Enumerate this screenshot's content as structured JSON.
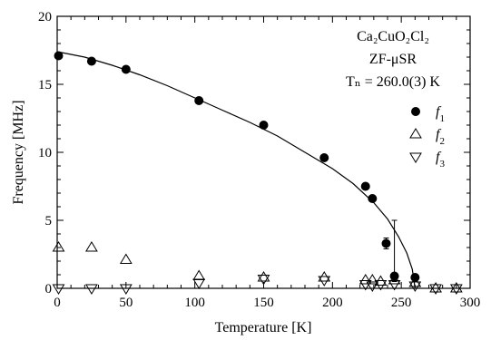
{
  "chart_data": {
    "type": "scatter",
    "xlabel": "Temperature [K]",
    "ylabel": "Frequency [MHz]",
    "xlim": [
      0,
      300
    ],
    "ylim": [
      0,
      20
    ],
    "x_ticks": [
      0,
      50,
      100,
      150,
      200,
      250,
      300
    ],
    "y_ticks": [
      0,
      5,
      10,
      15,
      20
    ],
    "grid": false,
    "legend_position": "right",
    "annotation": {
      "compound": "Ca₂CuO₂Cl₂",
      "method": "ZF-μSR",
      "tn": "Tₙ = 260.0(3) K"
    },
    "series": [
      {
        "name": "f1",
        "marker": "filled-circle",
        "points": [
          {
            "x": 1,
            "y": 17.1
          },
          {
            "x": 25,
            "y": 16.7
          },
          {
            "x": 50,
            "y": 16.1
          },
          {
            "x": 103,
            "y": 13.8
          },
          {
            "x": 150,
            "y": 12.0
          },
          {
            "x": 194,
            "y": 9.6
          },
          {
            "x": 224,
            "y": 7.5
          },
          {
            "x": 229,
            "y": 6.6
          },
          {
            "x": 239,
            "y": 3.3,
            "err": 0.4
          },
          {
            "x": 245,
            "y": 0.9,
            "err_up": 4.1,
            "err_down": 0.4
          },
          {
            "x": 260,
            "y": 0.8
          }
        ]
      },
      {
        "name": "f2",
        "marker": "open-triangle-up",
        "points": [
          {
            "x": 1,
            "y": 3.0
          },
          {
            "x": 25,
            "y": 3.0
          },
          {
            "x": 50,
            "y": 2.1
          },
          {
            "x": 103,
            "y": 0.9
          },
          {
            "x": 150,
            "y": 0.8
          },
          {
            "x": 194,
            "y": 0.8
          },
          {
            "x": 224,
            "y": 0.6
          },
          {
            "x": 229,
            "y": 0.6
          },
          {
            "x": 235,
            "y": 0.5
          },
          {
            "x": 245,
            "y": 0.6
          },
          {
            "x": 260,
            "y": 0.4
          },
          {
            "x": 275,
            "y": 0.0
          },
          {
            "x": 290,
            "y": 0.0
          }
        ]
      },
      {
        "name": "f3",
        "marker": "open-triangle-down",
        "points": [
          {
            "x": 1,
            "y": 0.0
          },
          {
            "x": 25,
            "y": 0.0
          },
          {
            "x": 50,
            "y": 0.0
          },
          {
            "x": 103,
            "y": 0.4
          },
          {
            "x": 150,
            "y": 0.7
          },
          {
            "x": 194,
            "y": 0.6
          },
          {
            "x": 224,
            "y": 0.3
          },
          {
            "x": 229,
            "y": 0.2
          },
          {
            "x": 235,
            "y": 0.3
          },
          {
            "x": 245,
            "y": 0.3
          },
          {
            "x": 260,
            "y": 0.2
          },
          {
            "x": 275,
            "y": 0.0
          },
          {
            "x": 290,
            "y": 0.0
          }
        ]
      }
    ],
    "fit_curve": {
      "f0": 17.4,
      "tn": 260,
      "points": [
        {
          "x": 0,
          "y": 17.4
        },
        {
          "x": 20,
          "y": 17.0
        },
        {
          "x": 40,
          "y": 16.4
        },
        {
          "x": 60,
          "y": 15.7
        },
        {
          "x": 80,
          "y": 14.9
        },
        {
          "x": 100,
          "y": 14.0
        },
        {
          "x": 120,
          "y": 13.1
        },
        {
          "x": 140,
          "y": 12.2
        },
        {
          "x": 160,
          "y": 11.2
        },
        {
          "x": 180,
          "y": 10.0
        },
        {
          "x": 200,
          "y": 8.8
        },
        {
          "x": 215,
          "y": 7.7
        },
        {
          "x": 230,
          "y": 6.3
        },
        {
          "x": 240,
          "y": 5.1
        },
        {
          "x": 248,
          "y": 3.8
        },
        {
          "x": 254,
          "y": 2.6
        },
        {
          "x": 258,
          "y": 1.4
        },
        {
          "x": 260,
          "y": 0.0
        }
      ]
    }
  }
}
